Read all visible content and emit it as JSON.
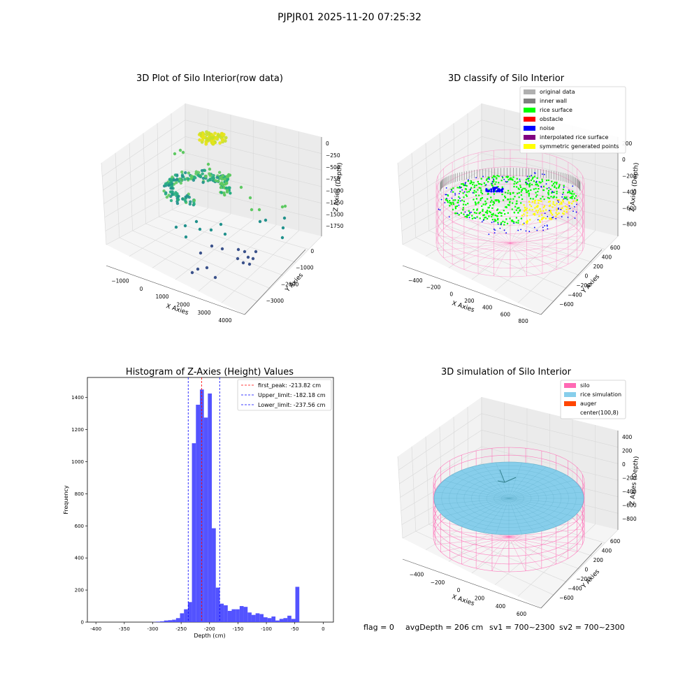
{
  "suptitle": "PJPJR01 2025-11-20 07:25:32",
  "panels": {
    "raw": {
      "title": "3D Plot of Silo Interior(row data)",
      "xlabel": "X Axies",
      "ylabel": "Y Axies",
      "zlabel": "Z Axies (Depth)",
      "xticks": [
        "−1000",
        "0",
        "1000",
        "2000",
        "3000",
        "4000"
      ],
      "yticks": [
        "0",
        "−1000",
        "−2000",
        "−3000"
      ],
      "zticks": [
        "0",
        "−250",
        "−500",
        "−750",
        "−1000",
        "−1250",
        "−1500",
        "−1750"
      ],
      "colormap": "viridis"
    },
    "classify": {
      "title": "3D classify of Silo Interior",
      "xlabel": "X Axies",
      "ylabel": "Y Axies",
      "zlabel": "Z Axies (Depth)",
      "xticks": [
        "−400",
        "−200",
        "0",
        "200",
        "400",
        "600",
        "800"
      ],
      "yticks": [
        "600",
        "400",
        "200",
        "0",
        "−200",
        "−400",
        "−600"
      ],
      "zticks": [
        "200",
        "0",
        "−200",
        "−400",
        "−600",
        "−800"
      ],
      "legend": [
        {
          "label": "original data",
          "color": "#b0b0b0"
        },
        {
          "label": "inner wall",
          "color": "#808080"
        },
        {
          "label": "rice surface",
          "color": "#00ff00"
        },
        {
          "label": "obstacle",
          "color": "#ff0000"
        },
        {
          "label": "noise",
          "color": "#0000ff"
        },
        {
          "label": "interpolated rice surface",
          "color": "#800080"
        },
        {
          "label": "symmetric generated points",
          "color": "#ffff00"
        }
      ]
    },
    "simulation": {
      "title": "3D simulation of Silo Interior",
      "xlabel": "X Axies",
      "ylabel": "Y Axies",
      "zlabel": "Z Axies (Depth)",
      "xticks": [
        "−400",
        "−200",
        "0",
        "200",
        "400",
        "600"
      ],
      "yticks": [
        "600",
        "400",
        "200",
        "0",
        "−200",
        "−400",
        "−600"
      ],
      "zticks": [
        "400",
        "200",
        "0",
        "−200",
        "−400",
        "−600",
        "−800"
      ],
      "legend": [
        {
          "label": "silo",
          "color": "#ff69b4"
        },
        {
          "label": "rice simulation",
          "color": "#87ceeb"
        },
        {
          "label": "auger",
          "color": "#ff4500"
        },
        {
          "label": "center(100,8)",
          "color": "#ffffff"
        }
      ]
    }
  },
  "status_line": {
    "flag": "flag = 0",
    "avg_depth": "avgDepth = 206 cm",
    "sv1": "sv1 = 700~2300",
    "sv2": "sv2 = 700~2300"
  },
  "colors": {
    "hist_bar": "#4a4aff",
    "peak_line": "#ff0000",
    "limit_line": "#0000ff",
    "silo": "#ff69b4",
    "rice": "#87ceeb",
    "rice_surface": "#00ff00",
    "noise": "#0000ff",
    "symmetric": "#ffff00"
  },
  "chart_data": {
    "type": "bar",
    "title": "Histogram of Z-Axies (Height) Values",
    "xlabel": "Depth (cm)",
    "ylabel": "Frequency",
    "xlim": [
      -415,
      18
    ],
    "ylim": [
      0,
      1525
    ],
    "xticks": [
      -400,
      -350,
      -300,
      -250,
      -200,
      -150,
      -100,
      -50,
      0
    ],
    "yticks": [
      0,
      200,
      400,
      600,
      800,
      1000,
      1200,
      1400
    ],
    "bin_width": 7,
    "bin_starts": [
      -399,
      -392,
      -385,
      -378,
      -371,
      -364,
      -357,
      -350,
      -343,
      -336,
      -329,
      -322,
      -315,
      -308,
      -301,
      -294,
      -287,
      -280,
      -273,
      -266,
      -259,
      -252,
      -245,
      -238,
      -231,
      -224,
      -217,
      -210,
      -203,
      -196,
      -189,
      -182,
      -175,
      -168,
      -161,
      -154,
      -147,
      -140,
      -133,
      -126,
      -119,
      -112,
      -105,
      -98,
      -91,
      -84,
      -77,
      -70,
      -63,
      -56,
      -49,
      -42,
      -35,
      -28,
      -21,
      -14,
      -7
    ],
    "values": [
      0,
      0,
      0,
      0,
      0,
      0,
      0,
      0,
      0,
      0,
      0,
      0,
      0,
      0,
      1,
      3,
      5,
      10,
      12,
      15,
      25,
      55,
      80,
      125,
      1115,
      1355,
      1450,
      1275,
      1425,
      585,
      215,
      115,
      105,
      70,
      80,
      80,
      100,
      95,
      60,
      45,
      55,
      50,
      30,
      25,
      35,
      10,
      20,
      25,
      40,
      20,
      220,
      0,
      0,
      0,
      0,
      0,
      0
    ],
    "vlines": [
      {
        "x": -213.82,
        "label": "first_peak: -213.82 cm",
        "color": "#ff0000"
      },
      {
        "x": -182.18,
        "label": "Upper_limit: -182.18 cm",
        "color": "#0000ff"
      },
      {
        "x": -237.56,
        "label": "Lower_limit: -237.56 cm",
        "color": "#0000ff"
      }
    ],
    "legend_position": "upper right"
  }
}
